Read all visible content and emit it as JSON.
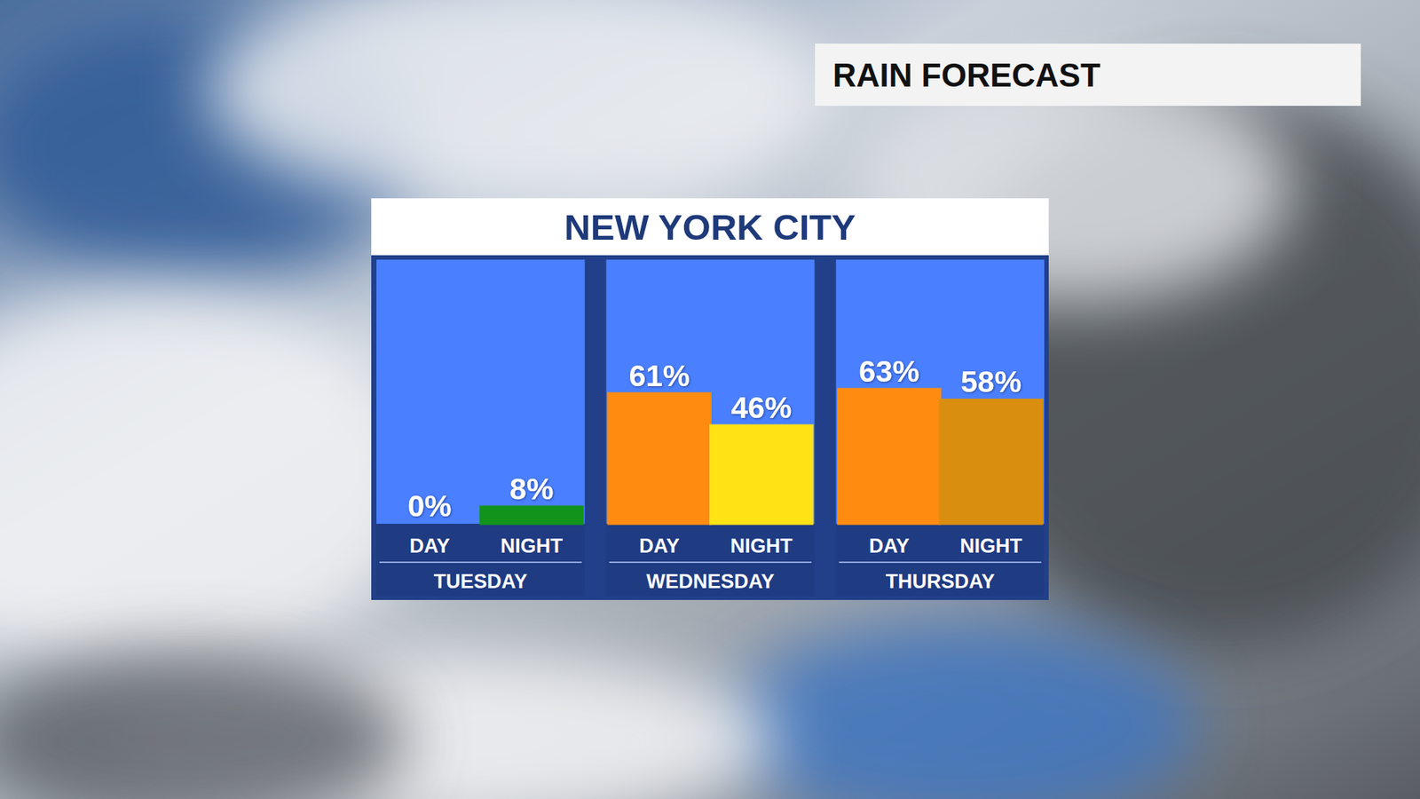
{
  "chart_data": {
    "type": "bar",
    "title": "NEW YORK CITY",
    "annotations": [
      "RAIN FORECAST"
    ],
    "categories": [
      "TUESDAY",
      "WEDNESDAY",
      "THURSDAY"
    ],
    "series": [
      {
        "name": "DAY",
        "values": [
          0,
          61,
          63
        ],
        "value_labels": [
          "0%",
          "61%",
          "63%"
        ],
        "colors": [
          "#ffffff",
          "#ff8c10",
          "#ff8c10"
        ]
      },
      {
        "name": "NIGHT",
        "values": [
          8,
          46,
          58
        ],
        "value_labels": [
          "8%",
          "46%",
          "58%"
        ],
        "colors": [
          "#12931b",
          "#ffe314",
          "#d98e10"
        ]
      }
    ],
    "ylim": [
      0,
      100
    ],
    "data_labels": true,
    "tick_labels": false
  }
}
